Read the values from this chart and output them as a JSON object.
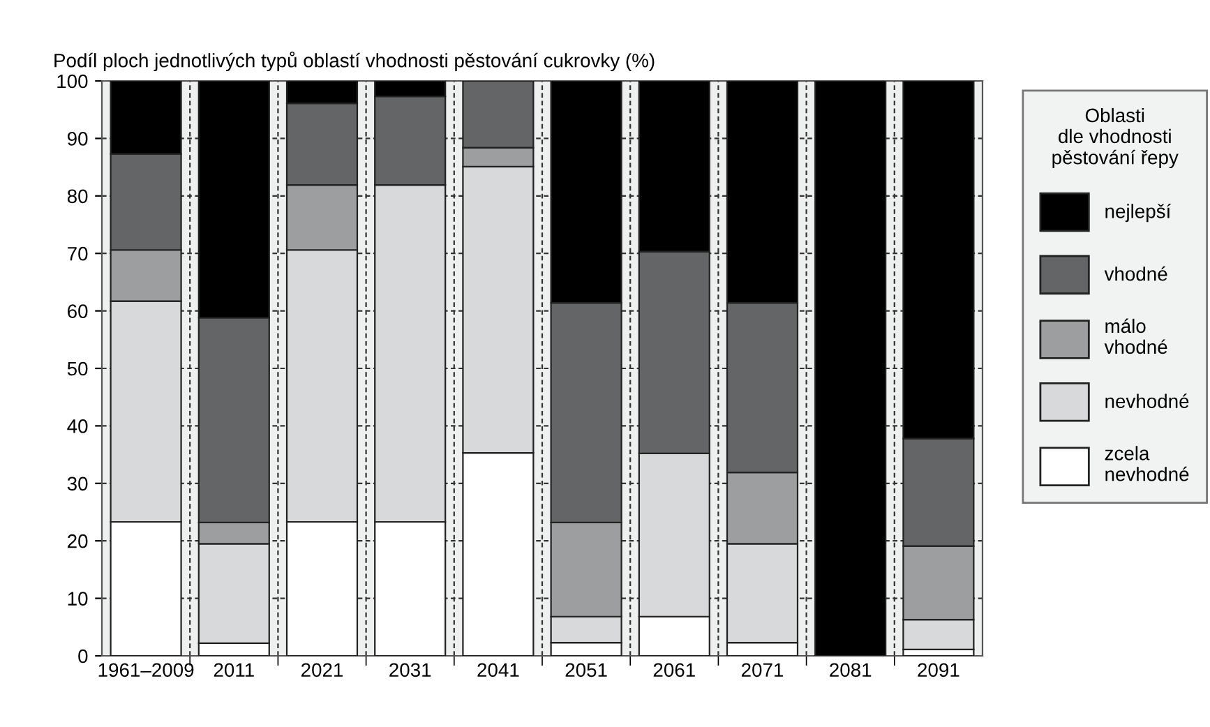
{
  "chart_data": {
    "type": "bar",
    "stacked": true,
    "ylabel": "Podíl ploch jednotlivých typů oblastí vhodnosti pěstování cukrovky (%)",
    "legend_title": "Oblasti\ndle vhodnosti\npěstování řepy",
    "categories": [
      "1961–2009",
      "2011",
      "2021",
      "2031",
      "2041",
      "2051",
      "2061",
      "2071",
      "2081",
      "2091"
    ],
    "series": [
      {
        "name": "zcela\nnevhodné",
        "color": "#ffffff",
        "values": [
          23.3,
          2.2,
          23.3,
          23.3,
          35.3,
          2.3,
          6.8,
          2.3,
          null,
          1.1
        ]
      },
      {
        "name": "nevhodné",
        "color": "#d8d9da",
        "values": [
          38.4,
          17.3,
          47.3,
          58.6,
          49.8,
          4.5,
          28.4,
          17.2,
          null,
          5.2
        ]
      },
      {
        "name": "málo\nvhodné",
        "color": "#9d9e9f",
        "values": [
          8.9,
          3.7,
          11.3,
          null,
          3.3,
          16.4,
          null,
          12.4,
          null,
          12.8
        ]
      },
      {
        "name": "vhodné",
        "color": "#646566",
        "values": [
          16.7,
          35.6,
          14.2,
          15.4,
          11.6,
          38.2,
          35.1,
          29.5,
          null,
          18.7
        ]
      },
      {
        "name": "nejlepší",
        "color": "#000000",
        "values": [
          12.7,
          41.2,
          3.9,
          2.7,
          null,
          38.6,
          29.7,
          38.6,
          100,
          62.2
        ]
      }
    ],
    "ylim": [
      0,
      100
    ],
    "yticks": [
      0,
      10,
      20,
      30,
      40,
      50,
      60,
      70,
      80,
      90,
      100
    ],
    "grid": true,
    "legend": "right"
  }
}
